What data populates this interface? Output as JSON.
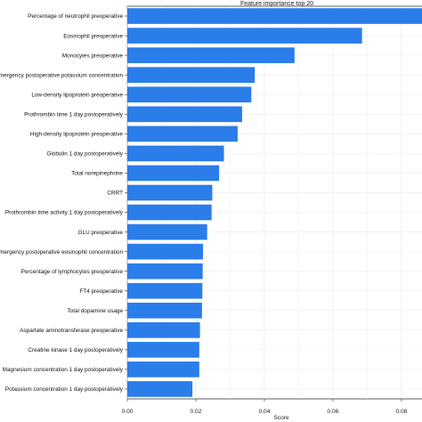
{
  "chart_data": {
    "type": "bar",
    "orientation": "horizontal",
    "title": "Feature importance top 20",
    "xlabel": "Score",
    "ylabel": "",
    "xlim": [
      0,
      0.086
    ],
    "xticks": [
      "0.00",
      "0.02",
      "0.04",
      "0.06",
      "0.08"
    ],
    "xtick_values": [
      0,
      0.02,
      0.04,
      0.06,
      0.08
    ],
    "grid": true,
    "bar_color": "#2b7de9",
    "categories": [
      "Percentage of neutrophil preoperative",
      "Eosinophil preoperative",
      "Monocytes preoperative",
      "Emergency postoperative potassium concentration",
      "Low-density lipoprotein preoperative",
      "Prothrombin time 1 day postoperatively",
      "High-density lipoprotein preoperative",
      "Globulin 1 day postoperatively",
      "Total norepinephrine",
      "CRRT",
      "Prothrombin time activity 1 day postoperatively",
      "GLU preoperative",
      "Emergency postoperative eosinophil concentration",
      "Percentage of lymphocytes preoperative",
      "FT4 preoperative",
      "Total dopamine usage",
      "Aspartate aminotransferase preoperative",
      "Creatine kinase 1 day postoperatively",
      "Magnesium concentration 1 day postoperatively",
      "Potassium concentration 1 day postoperatively"
    ],
    "values": [
      0.0865,
      0.0685,
      0.0488,
      0.0372,
      0.0362,
      0.0335,
      0.0322,
      0.0282,
      0.0268,
      0.0248,
      0.0246,
      0.0233,
      0.0221,
      0.022,
      0.0219,
      0.0218,
      0.0212,
      0.021,
      0.021,
      0.019
    ]
  }
}
